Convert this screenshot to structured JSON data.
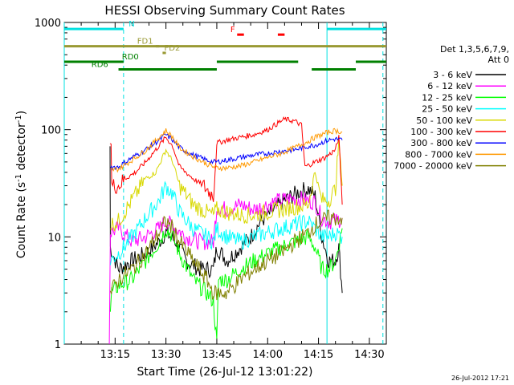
{
  "chart_data": {
    "type": "line",
    "title": "HESSI Observing Summary Count Rates",
    "xlabel": "Start Time (26-Jul-12 13:01:22)",
    "ylabel_main": "Count Rate (s",
    "ylabel_sup1": "-1",
    "ylabel_mid": " detector",
    "ylabel_sup2": "-1",
    "ylabel_end": ")",
    "y_scale": "log",
    "ylim": [
      1,
      1000
    ],
    "xlim_minutes": [
      0,
      95
    ],
    "xticks": [
      {
        "m": 15,
        "label": "13:15"
      },
      {
        "m": 30,
        "label": "13:30"
      },
      {
        "m": 45,
        "label": "13:45"
      },
      {
        "m": 60,
        "label": "14:00"
      },
      {
        "m": 75,
        "label": "14:15"
      },
      {
        "m": 90,
        "label": "14:30"
      }
    ],
    "yticks": [
      {
        "v": 1,
        "label": "1"
      },
      {
        "v": 10,
        "label": "10"
      },
      {
        "v": 100,
        "label": "100"
      },
      {
        "v": 1000,
        "label": "1000"
      }
    ],
    "legend_header": [
      "Det 1,3,5,6,7,9,",
      "Att 0"
    ],
    "legend_placement": "right",
    "footer_date": "26-Jul-2012 17:21",
    "saa_lines": [
      {
        "m": 0
      },
      {
        "m": 77.5
      }
    ],
    "night_lines": [
      {
        "m": 17.5
      },
      {
        "m": 94
      }
    ],
    "flags": [
      {
        "label": "N",
        "color": "#00e0e0",
        "level": 870,
        "segments": [
          [
            0,
            17.5
          ],
          [
            77.5,
            95
          ]
        ],
        "label_m": 19
      },
      {
        "label": "F",
        "color": "#ff0000",
        "level": 770,
        "segments": [
          [
            51,
            53
          ],
          [
            63,
            65
          ]
        ],
        "label_m": 49
      },
      {
        "label": "FD1",
        "color": "#999933",
        "level": 600,
        "segments": [
          [
            0,
            95
          ],
          [
            27,
            28
          ]
        ],
        "label_m": 21.5
      },
      {
        "label": "FD2",
        "color": "#999933",
        "level": 520,
        "segments": [
          [
            29,
            30
          ]
        ],
        "label_m": 29.5
      },
      {
        "label": "RD0",
        "color": "#008000",
        "level": 430,
        "segments": [
          [
            0,
            17.5
          ],
          [
            45,
            69
          ],
          [
            86,
            95
          ]
        ],
        "label_m": 17
      },
      {
        "label": "RD6",
        "color": "#008000",
        "level": 365,
        "segments": [
          [
            16,
            45
          ],
          [
            73,
            86
          ]
        ],
        "label_m": 8
      }
    ],
    "series": [
      {
        "name": "3 - 6 keV",
        "color": "#000000",
        "values": [
          [
            13.5,
            70
          ],
          [
            13.6,
            8
          ],
          [
            16,
            5
          ],
          [
            20,
            6
          ],
          [
            24,
            7
          ],
          [
            28,
            9
          ],
          [
            30,
            11
          ],
          [
            33,
            9
          ],
          [
            36,
            6
          ],
          [
            40,
            5
          ],
          [
            44,
            5
          ],
          [
            45,
            8
          ],
          [
            48,
            6
          ],
          [
            52,
            8
          ],
          [
            55,
            10
          ],
          [
            58,
            14
          ],
          [
            62,
            18
          ],
          [
            65,
            22
          ],
          [
            68,
            25
          ],
          [
            70,
            27
          ],
          [
            72,
            28
          ],
          [
            74,
            24
          ],
          [
            76,
            10
          ],
          [
            78,
            6
          ],
          [
            80,
            6
          ],
          [
            81,
            8
          ],
          [
            82,
            3
          ]
        ]
      },
      {
        "name": "6 - 12 keV",
        "color": "#ff00ff",
        "values": [
          [
            13.3,
            1
          ],
          [
            13.6,
            11
          ],
          [
            16,
            12
          ],
          [
            20,
            9
          ],
          [
            24,
            10
          ],
          [
            28,
            12
          ],
          [
            30,
            14
          ],
          [
            33,
            12
          ],
          [
            36,
            10
          ],
          [
            40,
            9
          ],
          [
            44,
            9
          ],
          [
            45,
            19
          ],
          [
            48,
            18
          ],
          [
            52,
            20
          ],
          [
            56,
            18
          ],
          [
            60,
            20
          ],
          [
            64,
            22
          ],
          [
            68,
            23
          ],
          [
            71,
            22
          ],
          [
            74,
            21
          ],
          [
            76,
            15
          ],
          [
            78,
            14
          ],
          [
            80,
            14
          ],
          [
            82,
            15
          ]
        ]
      },
      {
        "name": "12 - 25 keV",
        "color": "#00ff00",
        "values": [
          [
            13.6,
            2
          ],
          [
            14,
            3
          ],
          [
            16,
            3.5
          ],
          [
            20,
            4
          ],
          [
            24,
            6
          ],
          [
            28,
            9
          ],
          [
            30,
            12
          ],
          [
            32,
            10
          ],
          [
            34,
            7
          ],
          [
            38,
            4
          ],
          [
            42,
            3
          ],
          [
            44,
            2.5
          ],
          [
            45,
            1
          ],
          [
            45.5,
            4
          ],
          [
            48,
            4
          ],
          [
            52,
            5
          ],
          [
            56,
            6
          ],
          [
            60,
            7
          ],
          [
            64,
            8
          ],
          [
            68,
            9
          ],
          [
            72,
            10
          ],
          [
            74,
            8
          ],
          [
            76,
            5
          ],
          [
            78,
            5
          ],
          [
            80,
            6
          ],
          [
            82,
            12
          ]
        ]
      },
      {
        "name": "25 - 50 keV",
        "color": "#00ffff",
        "values": [
          [
            13.6,
            6
          ],
          [
            16,
            7
          ],
          [
            20,
            10
          ],
          [
            24,
            15
          ],
          [
            28,
            22
          ],
          [
            30,
            30
          ],
          [
            32,
            25
          ],
          [
            34,
            17
          ],
          [
            38,
            12
          ],
          [
            42,
            10
          ],
          [
            44,
            9
          ],
          [
            45,
            12
          ],
          [
            48,
            10
          ],
          [
            52,
            9
          ],
          [
            56,
            10
          ],
          [
            60,
            11
          ],
          [
            64,
            12
          ],
          [
            68,
            13
          ],
          [
            72,
            14
          ],
          [
            74,
            12
          ],
          [
            76,
            10
          ],
          [
            78,
            10
          ],
          [
            80,
            11
          ],
          [
            82,
            10
          ]
        ]
      },
      {
        "name": "50 - 100 keV",
        "color": "#d8d800",
        "values": [
          [
            13.6,
            13
          ],
          [
            16,
            14
          ],
          [
            20,
            22
          ],
          [
            24,
            35
          ],
          [
            27,
            40
          ],
          [
            30,
            65
          ],
          [
            32,
            50
          ],
          [
            34,
            30
          ],
          [
            38,
            20
          ],
          [
            42,
            17
          ],
          [
            44,
            16
          ],
          [
            45,
            18
          ],
          [
            48,
            17
          ],
          [
            52,
            16
          ],
          [
            56,
            16
          ],
          [
            60,
            17
          ],
          [
            64,
            18
          ],
          [
            68,
            19
          ],
          [
            72,
            20
          ],
          [
            74,
            40
          ],
          [
            76,
            22
          ],
          [
            78,
            22
          ],
          [
            80,
            28
          ],
          [
            81,
            80
          ],
          [
            82,
            30
          ]
        ]
      },
      {
        "name": "100 - 300 keV",
        "color": "#ff0000",
        "values": [
          [
            13.5,
            75
          ],
          [
            13.8,
            75
          ],
          [
            14,
            30
          ],
          [
            16,
            30
          ],
          [
            18,
            35
          ],
          [
            21,
            40
          ],
          [
            24,
            50
          ],
          [
            27,
            65
          ],
          [
            30,
            85
          ],
          [
            32,
            70
          ],
          [
            34,
            45
          ],
          [
            38,
            35
          ],
          [
            41,
            30
          ],
          [
            44,
            24
          ],
          [
            45,
            75
          ],
          [
            48,
            80
          ],
          [
            52,
            85
          ],
          [
            56,
            90
          ],
          [
            60,
            100
          ],
          [
            63,
            115
          ],
          [
            65,
            125
          ],
          [
            68,
            120
          ],
          [
            70,
            110
          ],
          [
            71,
            45
          ],
          [
            74,
            50
          ],
          [
            77,
            55
          ],
          [
            80,
            65
          ],
          [
            81,
            85
          ],
          [
            82,
            20
          ]
        ]
      },
      {
        "name": "300 - 800 keV",
        "color": "#0000ff",
        "values": [
          [
            13.6,
            45
          ],
          [
            16,
            45
          ],
          [
            20,
            55
          ],
          [
            24,
            65
          ],
          [
            28,
            80
          ],
          [
            30,
            90
          ],
          [
            32,
            80
          ],
          [
            34,
            68
          ],
          [
            38,
            58
          ],
          [
            42,
            52
          ],
          [
            44,
            50
          ],
          [
            45,
            50
          ],
          [
            48,
            52
          ],
          [
            52,
            55
          ],
          [
            56,
            58
          ],
          [
            60,
            60
          ],
          [
            64,
            63
          ],
          [
            68,
            65
          ],
          [
            72,
            70
          ],
          [
            74,
            72
          ],
          [
            76,
            76
          ],
          [
            78,
            80
          ],
          [
            80,
            82
          ],
          [
            82,
            80
          ]
        ]
      },
      {
        "name": "800 - 7000 keV",
        "color": "#ff9900",
        "values": [
          [
            13.6,
            42
          ],
          [
            16,
            43
          ],
          [
            20,
            52
          ],
          [
            24,
            64
          ],
          [
            28,
            85
          ],
          [
            30,
            98
          ],
          [
            32,
            85
          ],
          [
            34,
            68
          ],
          [
            38,
            56
          ],
          [
            42,
            48
          ],
          [
            44,
            45
          ],
          [
            45,
            44
          ],
          [
            48,
            44
          ],
          [
            52,
            46
          ],
          [
            56,
            50
          ],
          [
            60,
            55
          ],
          [
            64,
            60
          ],
          [
            68,
            68
          ],
          [
            72,
            78
          ],
          [
            74,
            85
          ],
          [
            76,
            90
          ],
          [
            78,
            95
          ],
          [
            80,
            98
          ],
          [
            82,
            95
          ]
        ]
      },
      {
        "name": "7000 - 20000 keV",
        "color": "#808000",
        "values": [
          [
            13.6,
            3
          ],
          [
            16,
            4
          ],
          [
            20,
            5
          ],
          [
            24,
            7
          ],
          [
            28,
            11
          ],
          [
            30,
            14
          ],
          [
            32,
            12
          ],
          [
            34,
            9
          ],
          [
            38,
            6
          ],
          [
            42,
            4
          ],
          [
            44,
            3
          ],
          [
            45,
            3
          ],
          [
            48,
            3
          ],
          [
            52,
            4
          ],
          [
            56,
            5
          ],
          [
            60,
            6
          ],
          [
            64,
            7
          ],
          [
            68,
            9
          ],
          [
            72,
            11
          ],
          [
            74,
            13
          ],
          [
            76,
            14
          ],
          [
            78,
            15
          ],
          [
            80,
            15
          ],
          [
            82,
            15
          ]
        ]
      }
    ]
  }
}
